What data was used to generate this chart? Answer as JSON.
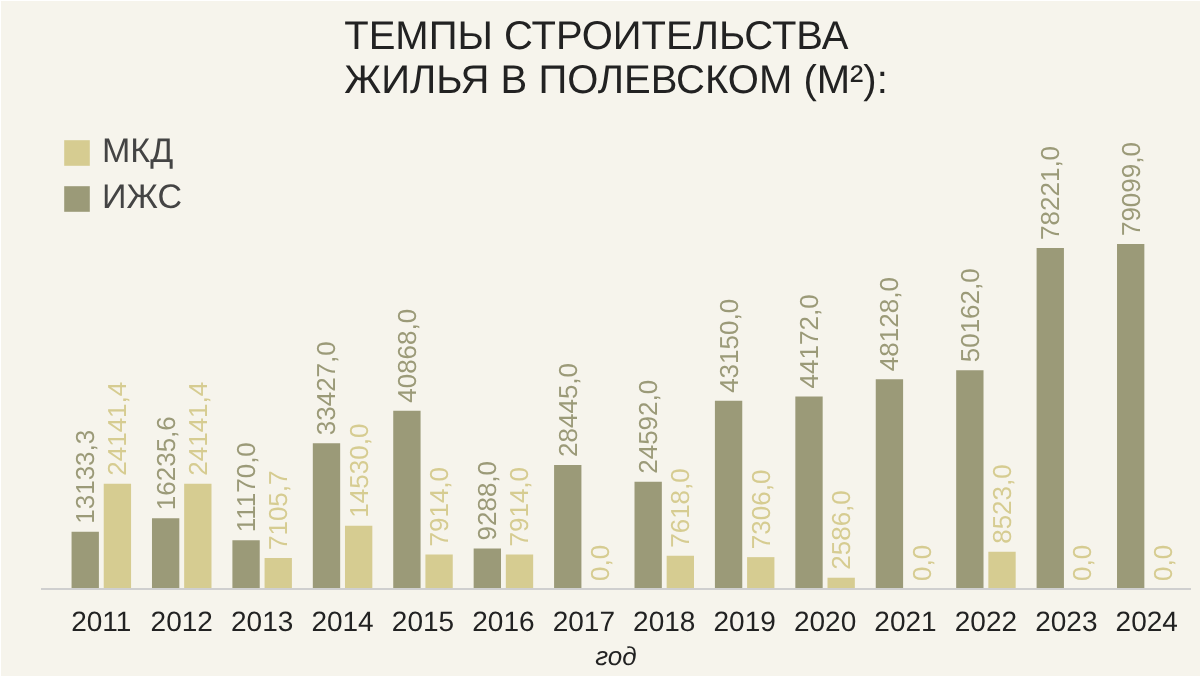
{
  "chart_data": {
    "type": "bar",
    "title": "ТЕМПЫ СТРОИТЕЛЬСТВА\nЖИЛЬЯ В ПОЛЕВСКОМ (М²):",
    "xlabel": "год",
    "categories": [
      "2011",
      "2012",
      "2013",
      "2014",
      "2015",
      "2016",
      "2017",
      "2018",
      "2019",
      "2020",
      "2021",
      "2022",
      "2023",
      "2024"
    ],
    "series": [
      {
        "name": "ИЖС",
        "color": "#9b9a78",
        "values": [
          13133.3,
          16235.6,
          11170.0,
          33427.0,
          40868.0,
          9288.0,
          28445.0,
          24592.0,
          43150.0,
          44172.0,
          48128.0,
          50162.0,
          78221.0,
          79099.0
        ],
        "value_labels": [
          "13133,3",
          "16235,6",
          "11170,0",
          "33427,0",
          "40868,0",
          "9288,0",
          "28445,0",
          "24592,0",
          "43150,0",
          "44172,0",
          "48128,0",
          "50162,0",
          "78221,0",
          "79099,0"
        ]
      },
      {
        "name": "МКД",
        "color": "#d6cc91",
        "values": [
          24141.4,
          24141.4,
          7105.7,
          14530.0,
          7914.0,
          7914.0,
          0.0,
          7618.0,
          7306.0,
          2586.0,
          0.0,
          8523.0,
          0.0,
          0.0
        ],
        "value_labels": [
          "24141,4",
          "24141,4",
          "7105,7",
          "14530,0",
          "7914,0",
          "7914,0",
          "0,0",
          "7618,0",
          "7306,0",
          "2586,0",
          "0,0",
          "8523,0",
          "0,0",
          "0,0"
        ]
      }
    ],
    "legend": "top left",
    "grid": false
  }
}
